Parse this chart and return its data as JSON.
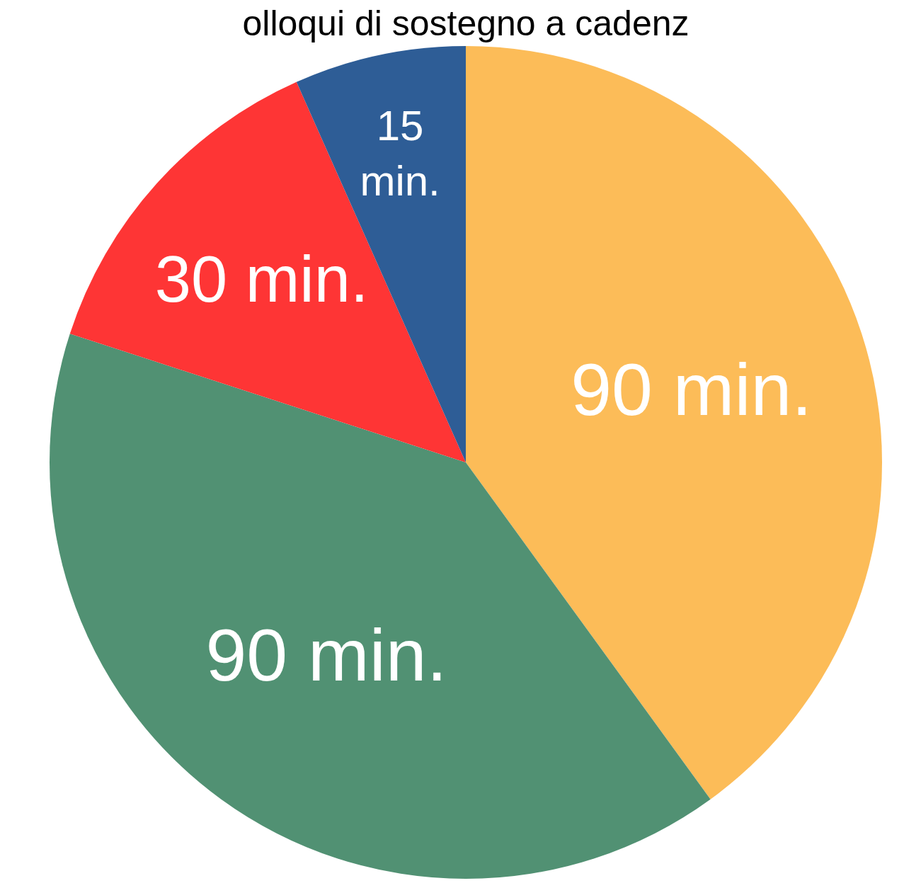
{
  "chart_data": {
    "type": "pie",
    "title": "olloqui di sostegno a cadenz",
    "categories": [
      null,
      null,
      null,
      null
    ],
    "values": [
      90,
      90,
      30,
      15
    ],
    "colors": [
      "#fcbc58",
      "#519173",
      "#fe3535",
      "#2e5d96"
    ],
    "value_labels": [
      "90 min.",
      "90 min.",
      "30 min.",
      "15 min."
    ]
  }
}
